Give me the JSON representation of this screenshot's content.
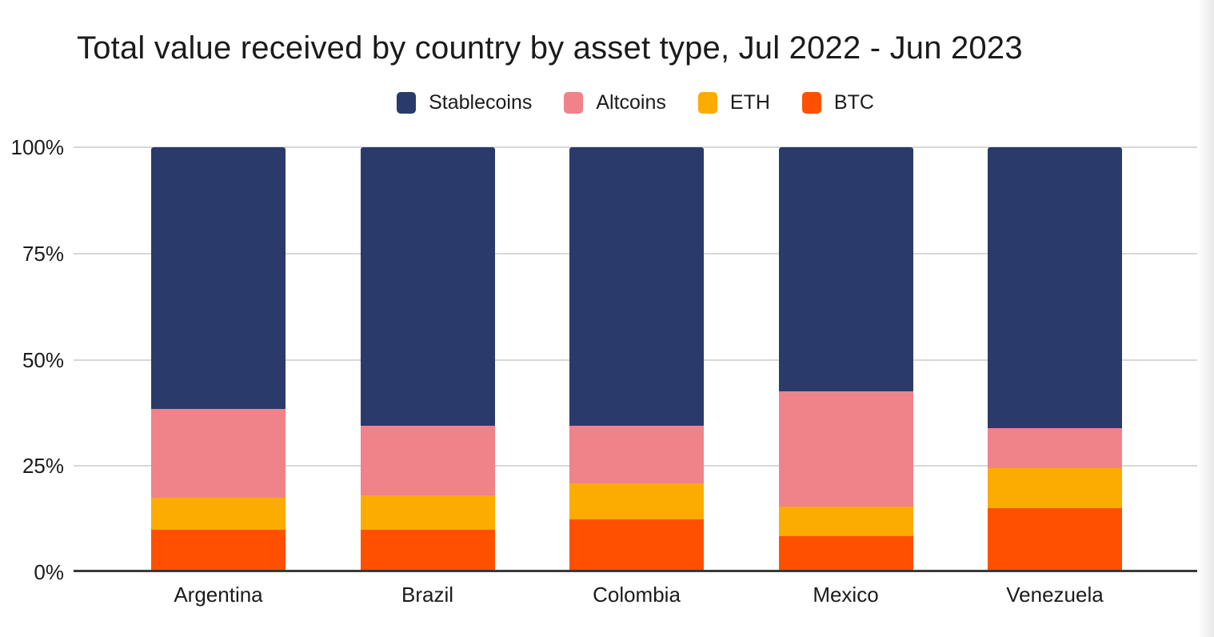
{
  "chart_data": {
    "type": "bar",
    "stacked": true,
    "normalized": true,
    "title": "Total value received by country by asset type, Jul 2022 - Jun 2023",
    "categories": [
      "Argentina",
      "Brazil",
      "Colombia",
      "Mexico",
      "Venezuela"
    ],
    "series": [
      {
        "name": "BTC",
        "color": "#ff5000",
        "values": [
          10,
          10,
          12.5,
          8.5,
          15
        ]
      },
      {
        "name": "ETH",
        "color": "#fcac00",
        "values": [
          7.5,
          8,
          8.5,
          7,
          9.5
        ]
      },
      {
        "name": "Altcoins",
        "color": "#f0828a",
        "values": [
          21,
          16.5,
          13.5,
          27,
          9.5
        ]
      },
      {
        "name": "Stablecoins",
        "color": "#2a3a6a",
        "values": [
          61.5,
          65.5,
          65.5,
          57.5,
          66
        ]
      }
    ],
    "legend_order": [
      "Stablecoins",
      "Altcoins",
      "ETH",
      "BTC"
    ],
    "legend_position": "top",
    "y_axis": {
      "min": 0,
      "max": 100,
      "unit": "%",
      "tick_values": [
        0,
        25,
        50,
        75,
        100
      ],
      "tick_labels": [
        "0%",
        "25%",
        "50%",
        "75%",
        "100%"
      ]
    },
    "grid": true,
    "colors": {
      "gridline": "#d8d8d8",
      "baseline": "#3a3a3a",
      "text": "#1b1b1b",
      "background": "#ffffff"
    }
  }
}
